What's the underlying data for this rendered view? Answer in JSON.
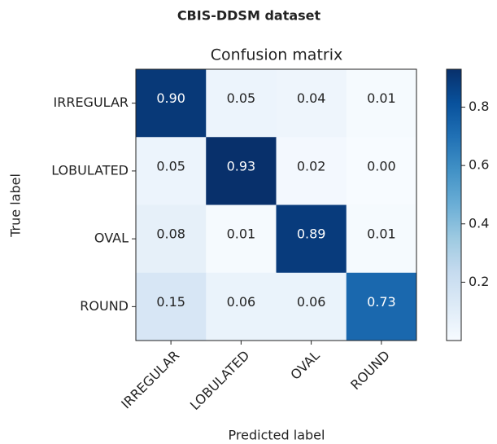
{
  "chart_data": {
    "type": "heatmap",
    "title": "CBIS-DDSM dataset",
    "subtitle": "Confusion matrix",
    "xlabel": "Predicted label",
    "ylabel": "True label",
    "x_categories": [
      "IRREGULAR",
      "LOBULATED",
      "OVAL",
      "ROUND"
    ],
    "y_categories": [
      "IRREGULAR",
      "LOBULATED",
      "OVAL",
      "ROUND"
    ],
    "values": [
      [
        0.9,
        0.05,
        0.04,
        0.01
      ],
      [
        0.05,
        0.93,
        0.02,
        0.0
      ],
      [
        0.08,
        0.01,
        0.89,
        0.01
      ],
      [
        0.15,
        0.06,
        0.06,
        0.73
      ]
    ],
    "value_labels": [
      [
        "0.90",
        "0.05",
        "0.04",
        "0.01"
      ],
      [
        "0.05",
        "0.93",
        "0.02",
        "0.00"
      ],
      [
        "0.08",
        "0.01",
        "0.89",
        "0.01"
      ],
      [
        "0.15",
        "0.06",
        "0.06",
        "0.73"
      ]
    ],
    "colormap": "Blues",
    "zlim": [
      0,
      0.93
    ],
    "zticks": [
      0.2,
      0.4,
      0.6,
      0.8
    ]
  }
}
